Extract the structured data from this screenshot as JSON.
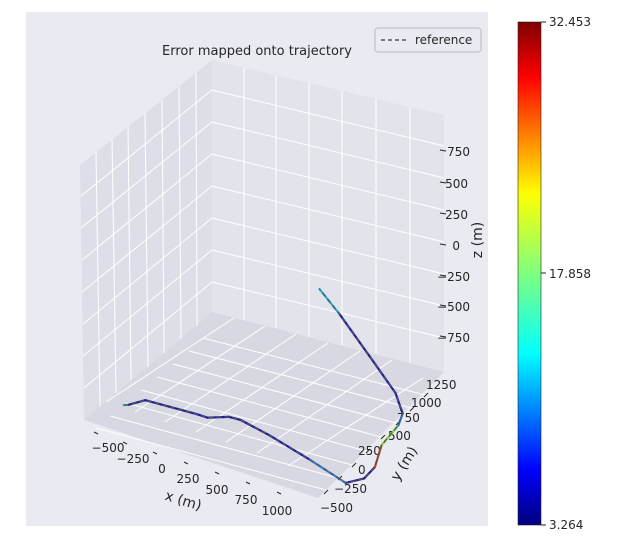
{
  "chart_data": {
    "type": "line",
    "projection": "3d",
    "title": "Error mapped onto trajectory",
    "xlabel": "x (m)",
    "ylabel": "y (m)",
    "zlabel": "z (m)",
    "xticks": [
      "−500",
      "−250",
      "0",
      "250",
      "500",
      "750",
      "1000"
    ],
    "yticks": [
      "−500",
      "−250",
      "0",
      "250",
      "500",
      "750",
      "1000",
      "1250"
    ],
    "zticks": [
      "750",
      "500",
      "250",
      "0",
      "−250",
      "−500",
      "−750"
    ],
    "legend": {
      "label": "reference",
      "position": "top-right",
      "line_style": "dashed",
      "color": "#555555"
    },
    "colorbar": {
      "colormap": "jet",
      "min_label": "3.264",
      "mid_label": "17.858",
      "max_label": "32.453",
      "min": 3.264,
      "mid": 17.858,
      "max": 32.453
    },
    "series": [
      {
        "name": "reference",
        "x": [
          -530,
          -520,
          -430,
          -100,
          -30,
          100,
          180,
          360,
          620,
          850,
          960,
          1020,
          1000,
          1005,
          980,
          870,
          640,
          320,
          140
        ],
        "y": [
          -100,
          -60,
          -20,
          -10,
          -5,
          10,
          10,
          20,
          30,
          40,
          60,
          80,
          200,
          400,
          500,
          620,
          770,
          960,
          1060
        ],
        "z": [
          -60,
          -80,
          -40,
          -50,
          -60,
          -20,
          -20,
          -90,
          -210,
          -330,
          -270,
          -170,
          -80,
          -50,
          -30,
          20,
          110,
          260,
          330
        ]
      }
    ]
  }
}
